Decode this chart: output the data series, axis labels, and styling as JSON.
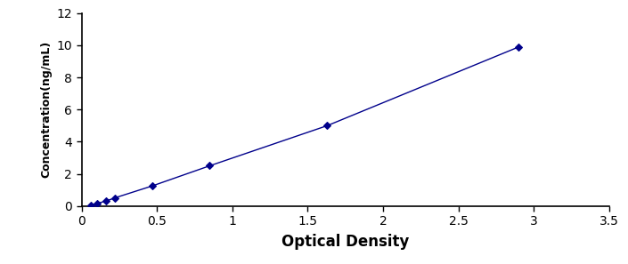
{
  "x": [
    0.06,
    0.1,
    0.16,
    0.22,
    0.47,
    0.85,
    1.63,
    2.9
  ],
  "y": [
    0.05,
    0.15,
    0.3,
    0.5,
    1.25,
    2.5,
    5.0,
    9.9
  ],
  "line_color": "#00008B",
  "marker_color": "#00008B",
  "marker": "D",
  "marker_size": 4,
  "line_style": "-",
  "line_width": 1.0,
  "xlabel": "Optical Density",
  "ylabel": "Concentration(ng/mL)",
  "xlim": [
    0,
    3.5
  ],
  "ylim": [
    0,
    12
  ],
  "xticks": [
    0,
    0.5,
    1.0,
    1.5,
    2.0,
    2.5,
    3.0,
    3.5
  ],
  "yticks": [
    0,
    2,
    4,
    6,
    8,
    10,
    12
  ],
  "xlabel_fontsize": 12,
  "ylabel_fontsize": 9,
  "tick_fontsize": 10,
  "background_color": "#ffffff",
  "spine_color": "#000000"
}
